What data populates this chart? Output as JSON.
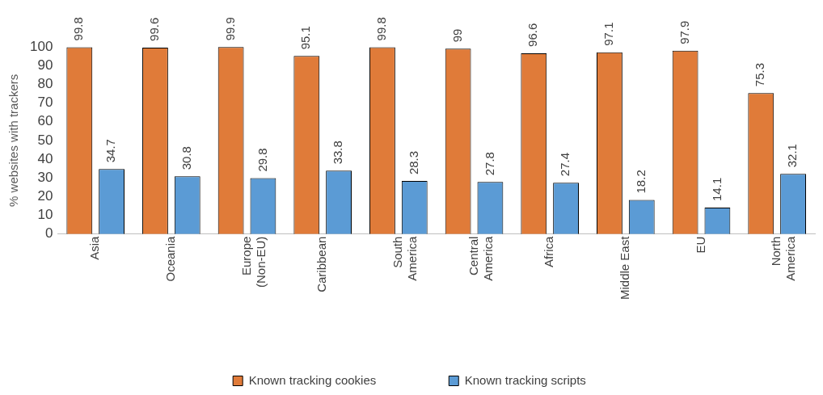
{
  "chart_data": {
    "type": "bar",
    "ylabel": "% websites with trackers",
    "categories": [
      "Asia",
      "Oceania",
      "Europe\n(Non-EU)",
      "Caribbean",
      "South\nAmerica",
      "Central\nAmerica",
      "Africa",
      "Middle East",
      "EU",
      "North\nAmerica"
    ],
    "series": [
      {
        "name": "Known tracking cookies",
        "color": "#e07b39",
        "values": [
          99.8,
          99.6,
          99.9,
          95.1,
          99.8,
          99,
          96.6,
          97.1,
          97.9,
          75.3
        ]
      },
      {
        "name": "Known tracking scripts",
        "color": "#5b9bd5",
        "values": [
          34.7,
          30.8,
          29.8,
          33.8,
          28.3,
          27.8,
          27.4,
          18.2,
          14.1,
          32.1
        ]
      }
    ],
    "ylim": [
      0,
      100
    ],
    "yticks": [
      0,
      10,
      20,
      30,
      40,
      50,
      60,
      70,
      80,
      90,
      100
    ],
    "grid": false,
    "legend": "bottom",
    "data_labels": true
  }
}
